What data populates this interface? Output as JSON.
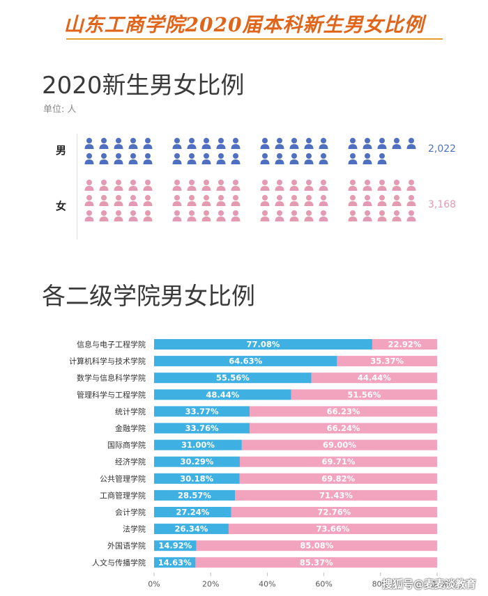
{
  "banner_title": "山东工商学院2020届本科新生男女比例",
  "section1": {
    "title": "2020新生男女比例",
    "unit_label": "单位: 人",
    "rows": [
      {
        "label": "男",
        "count_label": "2,022",
        "color": "#4f6fc0",
        "icons_per_group": [
          10,
          10,
          10,
          8
        ]
      },
      {
        "label": "女",
        "count_label": "3,168",
        "color": "#e49ab0",
        "icons_per_group": [
          15,
          15,
          15,
          15
        ]
      }
    ]
  },
  "section2": {
    "title": "各二级学院男女比例"
  },
  "chart_data": {
    "type": "bar",
    "stacked": true,
    "orientation": "horizontal",
    "categories": [
      "信息与电子工程学院",
      "计算机科学与技术学院",
      "数学与信息科学学院",
      "管理科学与工程学院",
      "统计学院",
      "金融学院",
      "国际商学院",
      "经济学院",
      "公共管理学院",
      "工商管理学院",
      "会计学院",
      "法学院",
      "外国语学院",
      "人文与传播学院"
    ],
    "series": [
      {
        "color": "#3eb0e2",
        "values": [
          77.08,
          64.63,
          55.56,
          48.44,
          33.77,
          33.76,
          31.0,
          30.29,
          30.18,
          28.57,
          27.24,
          26.34,
          14.92,
          14.63
        ],
        "labels": [
          "77.08%",
          "64.63%",
          "55.56%",
          "48.44%",
          "33.77%",
          "33.76%",
          "31.00%",
          "30.29%",
          "30.18%",
          "28.57%",
          "27.24%",
          "26.34%",
          "14.92%",
          "14.63%"
        ]
      },
      {
        "color": "#f2a3be",
        "values": [
          22.92,
          35.37,
          44.44,
          51.56,
          66.23,
          66.24,
          69.0,
          69.71,
          69.82,
          71.43,
          72.76,
          73.66,
          85.08,
          85.37
        ],
        "labels": [
          "22.92%",
          "35.37%",
          "44.44%",
          "51.56%",
          "66.23%",
          "66.24%",
          "69.00%",
          "69.71%",
          "69.82%",
          "71.43%",
          "72.76%",
          "73.66%",
          "85.08%",
          "85.37%"
        ]
      }
    ],
    "xlim": [
      0,
      100
    ],
    "xticks": [
      "0%",
      "20%",
      "40%",
      "60%",
      "80%",
      "100%"
    ],
    "xlabel": "",
    "ylabel": "",
    "grid": false
  },
  "watermark": "搜狐号@麦麦谈教育"
}
